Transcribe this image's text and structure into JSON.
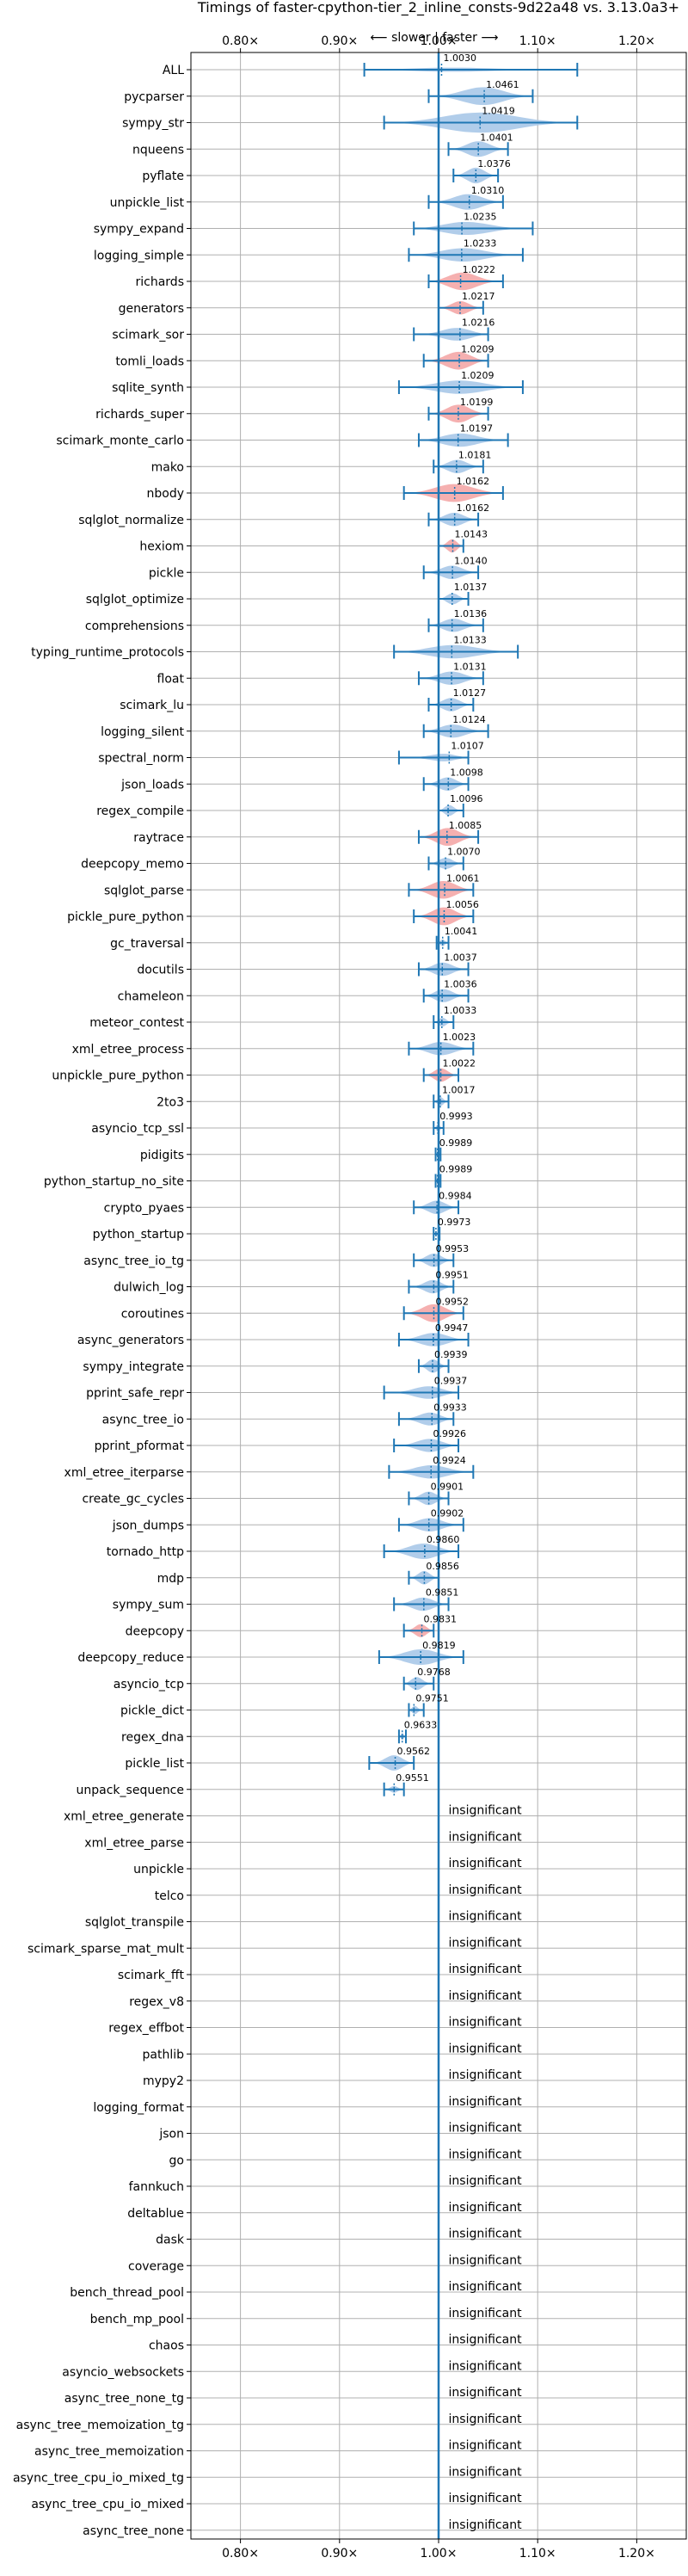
{
  "chart_data": {
    "type": "violin",
    "title": "Timings of faster-cpython-tier_2_inline_consts-9d22a48 vs. 3.13.0a3+",
    "direction_label": "⟵ slower  |  faster ⟶",
    "x_ticks": [
      "0.80×",
      "0.90×",
      "1.00×",
      "1.10×",
      "1.20×"
    ],
    "x_tick_values": [
      0.8,
      0.9,
      1.0,
      1.1,
      1.2
    ],
    "xlim": [
      0.75,
      1.25
    ],
    "insignificant_label": "insignificant",
    "colors": {
      "normal": "#a8c8e8",
      "highlight": "#f4a7a7",
      "line": "#1f77b4",
      "grid": "#b0b0b0"
    },
    "benchmarks": [
      {
        "name": "ALL",
        "value": 1.003,
        "label": "1.0030",
        "lo": 0.925,
        "hi": 1.14,
        "width": 0.2,
        "kind": "normal"
      },
      {
        "name": "pycparser",
        "value": 1.0461,
        "label": "1.0461",
        "lo": 0.99,
        "hi": 1.095,
        "width": 0.8,
        "kind": "normal"
      },
      {
        "name": "sympy_str",
        "value": 1.0419,
        "label": "1.0419",
        "lo": 0.945,
        "hi": 1.14,
        "width": 0.9,
        "kind": "normal"
      },
      {
        "name": "nqueens",
        "value": 1.0401,
        "label": "1.0401",
        "lo": 1.01,
        "hi": 1.07,
        "width": 0.7,
        "kind": "normal"
      },
      {
        "name": "pyflate",
        "value": 1.0376,
        "label": "1.0376",
        "lo": 1.015,
        "hi": 1.06,
        "width": 0.7,
        "kind": "normal"
      },
      {
        "name": "unpickle_list",
        "value": 1.031,
        "label": "1.0310",
        "lo": 0.99,
        "hi": 1.065,
        "width": 0.7,
        "kind": "normal"
      },
      {
        "name": "sympy_expand",
        "value": 1.0235,
        "label": "1.0235",
        "lo": 0.975,
        "hi": 1.095,
        "width": 0.6,
        "kind": "normal"
      },
      {
        "name": "logging_simple",
        "value": 1.0233,
        "label": "1.0233",
        "lo": 0.97,
        "hi": 1.085,
        "width": 0.6,
        "kind": "normal"
      },
      {
        "name": "richards",
        "value": 1.0222,
        "label": "1.0222",
        "lo": 0.99,
        "hi": 1.065,
        "width": 0.8,
        "kind": "highlight"
      },
      {
        "name": "generators",
        "value": 1.0217,
        "label": "1.0217",
        "lo": 1.0,
        "hi": 1.045,
        "width": 0.6,
        "kind": "highlight"
      },
      {
        "name": "scimark_sor",
        "value": 1.0216,
        "label": "1.0216",
        "lo": 0.975,
        "hi": 1.05,
        "width": 0.6,
        "kind": "normal"
      },
      {
        "name": "tomli_loads",
        "value": 1.0209,
        "label": "1.0209",
        "lo": 0.985,
        "hi": 1.05,
        "width": 0.8,
        "kind": "highlight"
      },
      {
        "name": "sqlite_synth",
        "value": 1.0209,
        "label": "1.0209",
        "lo": 0.96,
        "hi": 1.085,
        "width": 0.6,
        "kind": "normal"
      },
      {
        "name": "richards_super",
        "value": 1.0199,
        "label": "1.0199",
        "lo": 0.99,
        "hi": 1.05,
        "width": 0.8,
        "kind": "highlight"
      },
      {
        "name": "scimark_monte_carlo",
        "value": 1.0197,
        "label": "1.0197",
        "lo": 0.98,
        "hi": 1.07,
        "width": 0.6,
        "kind": "normal"
      },
      {
        "name": "mako",
        "value": 1.0181,
        "label": "1.0181",
        "lo": 0.995,
        "hi": 1.045,
        "width": 0.6,
        "kind": "normal"
      },
      {
        "name": "nbody",
        "value": 1.0162,
        "label": "1.0162",
        "lo": 0.965,
        "hi": 1.065,
        "width": 0.8,
        "kind": "highlight"
      },
      {
        "name": "sqlglot_normalize",
        "value": 1.0162,
        "label": "1.0162",
        "lo": 0.99,
        "hi": 1.04,
        "width": 0.6,
        "kind": "normal"
      },
      {
        "name": "hexiom",
        "value": 1.0143,
        "label": "1.0143",
        "lo": 1.0,
        "hi": 1.025,
        "width": 0.6,
        "kind": "highlight"
      },
      {
        "name": "pickle",
        "value": 1.014,
        "label": "1.0140",
        "lo": 0.985,
        "hi": 1.04,
        "width": 0.6,
        "kind": "normal"
      },
      {
        "name": "sqlglot_optimize",
        "value": 1.0137,
        "label": "1.0137",
        "lo": 1.0,
        "hi": 1.03,
        "width": 0.5,
        "kind": "normal"
      },
      {
        "name": "comprehensions",
        "value": 1.0136,
        "label": "1.0136",
        "lo": 0.99,
        "hi": 1.045,
        "width": 0.6,
        "kind": "normal"
      },
      {
        "name": "typing_runtime_protocols",
        "value": 1.0133,
        "label": "1.0133",
        "lo": 0.955,
        "hi": 1.08,
        "width": 0.6,
        "kind": "normal"
      },
      {
        "name": "float",
        "value": 1.0131,
        "label": "1.0131",
        "lo": 0.98,
        "hi": 1.045,
        "width": 0.6,
        "kind": "normal"
      },
      {
        "name": "scimark_lu",
        "value": 1.0127,
        "label": "1.0127",
        "lo": 0.99,
        "hi": 1.035,
        "width": 0.6,
        "kind": "normal"
      },
      {
        "name": "logging_silent",
        "value": 1.0124,
        "label": "1.0124",
        "lo": 0.985,
        "hi": 1.05,
        "width": 0.6,
        "kind": "normal"
      },
      {
        "name": "spectral_norm",
        "value": 1.0107,
        "label": "1.0107",
        "lo": 0.96,
        "hi": 1.03,
        "width": 0.4,
        "kind": "normal"
      },
      {
        "name": "json_loads",
        "value": 1.0098,
        "label": "1.0098",
        "lo": 0.985,
        "hi": 1.03,
        "width": 0.6,
        "kind": "normal"
      },
      {
        "name": "regex_compile",
        "value": 1.0096,
        "label": "1.0096",
        "lo": 1.0,
        "hi": 1.025,
        "width": 0.5,
        "kind": "normal"
      },
      {
        "name": "raytrace",
        "value": 1.0085,
        "label": "1.0085",
        "lo": 0.98,
        "hi": 1.04,
        "width": 0.8,
        "kind": "highlight"
      },
      {
        "name": "deepcopy_memo",
        "value": 1.007,
        "label": "1.0070",
        "lo": 0.99,
        "hi": 1.025,
        "width": 0.5,
        "kind": "normal"
      },
      {
        "name": "sqlglot_parse",
        "value": 1.0061,
        "label": "1.0061",
        "lo": 0.97,
        "hi": 1.035,
        "width": 0.8,
        "kind": "highlight"
      },
      {
        "name": "pickle_pure_python",
        "value": 1.0056,
        "label": "1.0056",
        "lo": 0.975,
        "hi": 1.035,
        "width": 0.8,
        "kind": "highlight"
      },
      {
        "name": "gc_traversal",
        "value": 1.0041,
        "label": "1.0041",
        "lo": 0.998,
        "hi": 1.01,
        "width": 0.3,
        "kind": "normal"
      },
      {
        "name": "docutils",
        "value": 1.0037,
        "label": "1.0037",
        "lo": 0.98,
        "hi": 1.03,
        "width": 0.6,
        "kind": "normal"
      },
      {
        "name": "chameleon",
        "value": 1.0036,
        "label": "1.0036",
        "lo": 0.985,
        "hi": 1.03,
        "width": 0.6,
        "kind": "normal"
      },
      {
        "name": "meteor_contest",
        "value": 1.0033,
        "label": "1.0033",
        "lo": 0.995,
        "hi": 1.015,
        "width": 0.4,
        "kind": "normal"
      },
      {
        "name": "xml_etree_process",
        "value": 1.0023,
        "label": "1.0023",
        "lo": 0.97,
        "hi": 1.035,
        "width": 0.6,
        "kind": "normal"
      },
      {
        "name": "unpickle_pure_python",
        "value": 1.0022,
        "label": "1.0022",
        "lo": 0.985,
        "hi": 1.02,
        "width": 0.6,
        "kind": "highlight"
      },
      {
        "name": "2to3",
        "value": 1.0017,
        "label": "1.0017",
        "lo": 0.995,
        "hi": 1.01,
        "width": 0.4,
        "kind": "normal"
      },
      {
        "name": "asyncio_tcp_ssl",
        "value": 0.9993,
        "label": "0.9993",
        "lo": 0.995,
        "hi": 1.005,
        "width": 0.3,
        "kind": "normal"
      },
      {
        "name": "pidigits",
        "value": 0.9989,
        "label": "0.9989",
        "lo": 0.997,
        "hi": 1.002,
        "width": 0.25,
        "kind": "normal"
      },
      {
        "name": "python_startup_no_site",
        "value": 0.9989,
        "label": "0.9989",
        "lo": 0.997,
        "hi": 1.002,
        "width": 0.25,
        "kind": "normal"
      },
      {
        "name": "crypto_pyaes",
        "value": 0.9984,
        "label": "0.9984",
        "lo": 0.975,
        "hi": 1.02,
        "width": 0.6,
        "kind": "normal"
      },
      {
        "name": "python_startup",
        "value": 0.9973,
        "label": "0.9973",
        "lo": 0.995,
        "hi": 1.001,
        "width": 0.25,
        "kind": "normal"
      },
      {
        "name": "async_tree_io_tg",
        "value": 0.9953,
        "label": "0.9953",
        "lo": 0.975,
        "hi": 1.015,
        "width": 0.6,
        "kind": "normal"
      },
      {
        "name": "dulwich_log",
        "value": 0.9951,
        "label": "0.9951",
        "lo": 0.97,
        "hi": 1.015,
        "width": 0.6,
        "kind": "normal"
      },
      {
        "name": "coroutines",
        "value": 0.9952,
        "label": "0.9952",
        "lo": 0.965,
        "hi": 1.025,
        "width": 0.8,
        "kind": "highlight"
      },
      {
        "name": "async_generators",
        "value": 0.9947,
        "label": "0.9947",
        "lo": 0.96,
        "hi": 1.03,
        "width": 0.6,
        "kind": "normal"
      },
      {
        "name": "sympy_integrate",
        "value": 0.9939,
        "label": "0.9939",
        "lo": 0.98,
        "hi": 1.01,
        "width": 0.6,
        "kind": "normal"
      },
      {
        "name": "pprint_safe_repr",
        "value": 0.9937,
        "label": "0.9937",
        "lo": 0.945,
        "hi": 1.02,
        "width": 0.6,
        "kind": "normal"
      },
      {
        "name": "async_tree_io",
        "value": 0.9933,
        "label": "0.9933",
        "lo": 0.96,
        "hi": 1.015,
        "width": 0.6,
        "kind": "normal"
      },
      {
        "name": "pprint_pformat",
        "value": 0.9926,
        "label": "0.9926",
        "lo": 0.955,
        "hi": 1.02,
        "width": 0.6,
        "kind": "normal"
      },
      {
        "name": "xml_etree_iterparse",
        "value": 0.9924,
        "label": "0.9924",
        "lo": 0.95,
        "hi": 1.035,
        "width": 0.6,
        "kind": "normal"
      },
      {
        "name": "create_gc_cycles",
        "value": 0.9901,
        "label": "0.9901",
        "lo": 0.97,
        "hi": 1.01,
        "width": 0.6,
        "kind": "normal"
      },
      {
        "name": "json_dumps",
        "value": 0.9902,
        "label": "0.9902",
        "lo": 0.96,
        "hi": 1.025,
        "width": 0.6,
        "kind": "normal"
      },
      {
        "name": "tornado_http",
        "value": 0.986,
        "label": "0.9860",
        "lo": 0.945,
        "hi": 1.02,
        "width": 0.7,
        "kind": "normal"
      },
      {
        "name": "mdp",
        "value": 0.9856,
        "label": "0.9856",
        "lo": 0.97,
        "hi": 1.0,
        "width": 0.6,
        "kind": "normal"
      },
      {
        "name": "sympy_sum",
        "value": 0.9851,
        "label": "0.9851",
        "lo": 0.955,
        "hi": 1.01,
        "width": 0.6,
        "kind": "normal"
      },
      {
        "name": "deepcopy",
        "value": 0.9831,
        "label": "0.9831",
        "lo": 0.965,
        "hi": 0.995,
        "width": 0.6,
        "kind": "highlight"
      },
      {
        "name": "deepcopy_reduce",
        "value": 0.9819,
        "label": "0.9819",
        "lo": 0.94,
        "hi": 1.025,
        "width": 0.7,
        "kind": "normal"
      },
      {
        "name": "asyncio_tcp",
        "value": 0.9768,
        "label": "0.9768",
        "lo": 0.965,
        "hi": 0.995,
        "width": 0.6,
        "kind": "normal"
      },
      {
        "name": "pickle_dict",
        "value": 0.9751,
        "label": "0.9751",
        "lo": 0.97,
        "hi": 0.985,
        "width": 0.4,
        "kind": "normal"
      },
      {
        "name": "regex_dna",
        "value": 0.9633,
        "label": "0.9633",
        "lo": 0.96,
        "hi": 0.967,
        "width": 0.3,
        "kind": "normal"
      },
      {
        "name": "pickle_list",
        "value": 0.9562,
        "label": "0.9562",
        "lo": 0.93,
        "hi": 0.975,
        "width": 0.7,
        "kind": "normal"
      },
      {
        "name": "unpack_sequence",
        "value": 0.9551,
        "label": "0.9551",
        "lo": 0.945,
        "hi": 0.965,
        "width": 0.3,
        "kind": "normal"
      },
      {
        "name": "xml_etree_generate",
        "insignificant": true
      },
      {
        "name": "xml_etree_parse",
        "insignificant": true
      },
      {
        "name": "unpickle",
        "insignificant": true
      },
      {
        "name": "telco",
        "insignificant": true
      },
      {
        "name": "sqlglot_transpile",
        "insignificant": true
      },
      {
        "name": "scimark_sparse_mat_mult",
        "insignificant": true
      },
      {
        "name": "scimark_fft",
        "insignificant": true
      },
      {
        "name": "regex_v8",
        "insignificant": true
      },
      {
        "name": "regex_effbot",
        "insignificant": true
      },
      {
        "name": "pathlib",
        "insignificant": true
      },
      {
        "name": "mypy2",
        "insignificant": true
      },
      {
        "name": "logging_format",
        "insignificant": true
      },
      {
        "name": "json",
        "insignificant": true
      },
      {
        "name": "go",
        "insignificant": true
      },
      {
        "name": "fannkuch",
        "insignificant": true
      },
      {
        "name": "deltablue",
        "insignificant": true
      },
      {
        "name": "dask",
        "insignificant": true
      },
      {
        "name": "coverage",
        "insignificant": true
      },
      {
        "name": "bench_thread_pool",
        "insignificant": true
      },
      {
        "name": "bench_mp_pool",
        "insignificant": true
      },
      {
        "name": "chaos",
        "insignificant": true
      },
      {
        "name": "asyncio_websockets",
        "insignificant": true
      },
      {
        "name": "async_tree_none_tg",
        "insignificant": true
      },
      {
        "name": "async_tree_memoization_tg",
        "insignificant": true
      },
      {
        "name": "async_tree_memoization",
        "insignificant": true
      },
      {
        "name": "async_tree_cpu_io_mixed_tg",
        "insignificant": true
      },
      {
        "name": "async_tree_cpu_io_mixed",
        "insignificant": true
      },
      {
        "name": "async_tree_none",
        "insignificant": true
      }
    ]
  }
}
